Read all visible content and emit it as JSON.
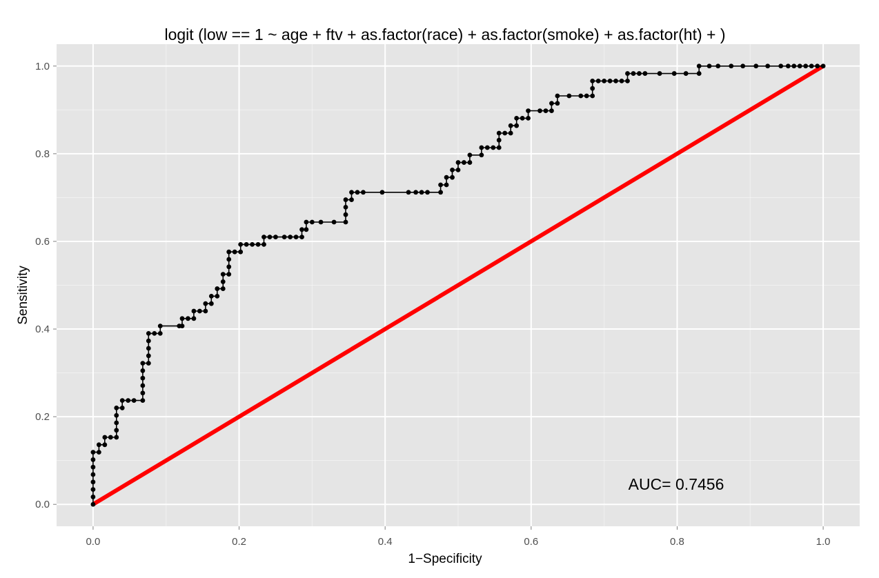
{
  "chart_data": {
    "type": "line",
    "title": "logit (low == 1 ~ age + ftv + as.factor(race) + as.factor(smoke) + as.factor(ht) + )",
    "xlabel": "1−Specificity",
    "ylabel": "Sensitivity",
    "xlim": [
      -0.05,
      1.05
    ],
    "ylim": [
      -0.05,
      1.05
    ],
    "x_ticks": [
      0.0,
      0.2,
      0.4,
      0.6,
      0.8,
      1.0
    ],
    "y_ticks": [
      0.0,
      0.2,
      0.4,
      0.6,
      0.8,
      1.0
    ],
    "x_tick_labels": [
      "0.0",
      "0.2",
      "0.4",
      "0.6",
      "0.8",
      "1.0"
    ],
    "y_tick_labels": [
      "0.0",
      "0.2",
      "0.4",
      "0.6",
      "0.8",
      "1.0"
    ],
    "grid": true,
    "annotation": "AUC= 0.7456",
    "colors": {
      "panel": "#e5e5e5",
      "grid": "#ffffff",
      "roc": "#000000",
      "reference": "#ff0000"
    },
    "series": [
      {
        "style": "step line with points",
        "color": "#000000",
        "points": [
          [
            0.0,
            0.0
          ],
          [
            0.0,
            0.017
          ],
          [
            0.0,
            0.034
          ],
          [
            0.0,
            0.051
          ],
          [
            0.0,
            0.068
          ],
          [
            0.0,
            0.085
          ],
          [
            0.0,
            0.102
          ],
          [
            0.0,
            0.119
          ],
          [
            0.008,
            0.119
          ],
          [
            0.008,
            0.136
          ],
          [
            0.016,
            0.136
          ],
          [
            0.016,
            0.153
          ],
          [
            0.024,
            0.153
          ],
          [
            0.032,
            0.153
          ],
          [
            0.032,
            0.169
          ],
          [
            0.032,
            0.186
          ],
          [
            0.032,
            0.203
          ],
          [
            0.032,
            0.22
          ],
          [
            0.04,
            0.22
          ],
          [
            0.04,
            0.237
          ],
          [
            0.048,
            0.237
          ],
          [
            0.056,
            0.237
          ],
          [
            0.068,
            0.237
          ],
          [
            0.068,
            0.254
          ],
          [
            0.068,
            0.271
          ],
          [
            0.068,
            0.288
          ],
          [
            0.068,
            0.305
          ],
          [
            0.068,
            0.322
          ],
          [
            0.076,
            0.322
          ],
          [
            0.076,
            0.339
          ],
          [
            0.076,
            0.356
          ],
          [
            0.076,
            0.373
          ],
          [
            0.076,
            0.39
          ],
          [
            0.084,
            0.39
          ],
          [
            0.092,
            0.39
          ],
          [
            0.092,
            0.407
          ],
          [
            0.118,
            0.407
          ],
          [
            0.122,
            0.407
          ],
          [
            0.122,
            0.424
          ],
          [
            0.13,
            0.424
          ],
          [
            0.138,
            0.424
          ],
          [
            0.138,
            0.441
          ],
          [
            0.146,
            0.441
          ],
          [
            0.154,
            0.441
          ],
          [
            0.154,
            0.458
          ],
          [
            0.162,
            0.458
          ],
          [
            0.162,
            0.475
          ],
          [
            0.17,
            0.475
          ],
          [
            0.17,
            0.492
          ],
          [
            0.178,
            0.492
          ],
          [
            0.178,
            0.508
          ],
          [
            0.178,
            0.525
          ],
          [
            0.186,
            0.525
          ],
          [
            0.186,
            0.542
          ],
          [
            0.186,
            0.559
          ],
          [
            0.186,
            0.576
          ],
          [
            0.194,
            0.576
          ],
          [
            0.202,
            0.576
          ],
          [
            0.202,
            0.593
          ],
          [
            0.21,
            0.593
          ],
          [
            0.218,
            0.593
          ],
          [
            0.226,
            0.593
          ],
          [
            0.234,
            0.593
          ],
          [
            0.234,
            0.61
          ],
          [
            0.242,
            0.61
          ],
          [
            0.25,
            0.61
          ],
          [
            0.262,
            0.61
          ],
          [
            0.27,
            0.61
          ],
          [
            0.278,
            0.61
          ],
          [
            0.286,
            0.61
          ],
          [
            0.286,
            0.627
          ],
          [
            0.292,
            0.627
          ],
          [
            0.292,
            0.644
          ],
          [
            0.3,
            0.644
          ],
          [
            0.312,
            0.644
          ],
          [
            0.33,
            0.644
          ],
          [
            0.346,
            0.644
          ],
          [
            0.346,
            0.661
          ],
          [
            0.346,
            0.678
          ],
          [
            0.346,
            0.695
          ],
          [
            0.354,
            0.695
          ],
          [
            0.354,
            0.712
          ],
          [
            0.362,
            0.712
          ],
          [
            0.37,
            0.712
          ],
          [
            0.396,
            0.712
          ],
          [
            0.432,
            0.712
          ],
          [
            0.442,
            0.712
          ],
          [
            0.45,
            0.712
          ],
          [
            0.458,
            0.712
          ],
          [
            0.476,
            0.712
          ],
          [
            0.476,
            0.729
          ],
          [
            0.484,
            0.729
          ],
          [
            0.484,
            0.746
          ],
          [
            0.492,
            0.746
          ],
          [
            0.492,
            0.763
          ],
          [
            0.5,
            0.763
          ],
          [
            0.5,
            0.78
          ],
          [
            0.508,
            0.78
          ],
          [
            0.516,
            0.78
          ],
          [
            0.516,
            0.797
          ],
          [
            0.532,
            0.797
          ],
          [
            0.532,
            0.814
          ],
          [
            0.54,
            0.814
          ],
          [
            0.548,
            0.814
          ],
          [
            0.556,
            0.814
          ],
          [
            0.556,
            0.831
          ],
          [
            0.556,
            0.847
          ],
          [
            0.564,
            0.847
          ],
          [
            0.572,
            0.847
          ],
          [
            0.572,
            0.864
          ],
          [
            0.58,
            0.864
          ],
          [
            0.58,
            0.881
          ],
          [
            0.588,
            0.881
          ],
          [
            0.596,
            0.881
          ],
          [
            0.596,
            0.898
          ],
          [
            0.612,
            0.898
          ],
          [
            0.62,
            0.898
          ],
          [
            0.628,
            0.898
          ],
          [
            0.628,
            0.915
          ],
          [
            0.636,
            0.915
          ],
          [
            0.636,
            0.932
          ],
          [
            0.652,
            0.932
          ],
          [
            0.668,
            0.932
          ],
          [
            0.676,
            0.932
          ],
          [
            0.684,
            0.932
          ],
          [
            0.684,
            0.949
          ],
          [
            0.684,
            0.966
          ],
          [
            0.692,
            0.966
          ],
          [
            0.7,
            0.966
          ],
          [
            0.708,
            0.966
          ],
          [
            0.716,
            0.966
          ],
          [
            0.724,
            0.966
          ],
          [
            0.732,
            0.966
          ],
          [
            0.732,
            0.983
          ],
          [
            0.74,
            0.983
          ],
          [
            0.748,
            0.983
          ],
          [
            0.756,
            0.983
          ],
          [
            0.776,
            0.983
          ],
          [
            0.796,
            0.983
          ],
          [
            0.812,
            0.983
          ],
          [
            0.83,
            0.983
          ],
          [
            0.83,
            1.0
          ],
          [
            0.844,
            1.0
          ],
          [
            0.856,
            1.0
          ],
          [
            0.874,
            1.0
          ],
          [
            0.89,
            1.0
          ],
          [
            0.908,
            1.0
          ],
          [
            0.924,
            1.0
          ],
          [
            0.942,
            1.0
          ],
          [
            0.952,
            1.0
          ],
          [
            0.96,
            1.0
          ],
          [
            0.968,
            1.0
          ],
          [
            0.976,
            1.0
          ],
          [
            0.984,
            1.0
          ],
          [
            0.992,
            1.0
          ],
          [
            1.0,
            1.0
          ]
        ]
      },
      {
        "style": "thick reference line",
        "color": "#ff0000",
        "points": [
          [
            0.0,
            0.0
          ],
          [
            1.0,
            1.0
          ]
        ]
      }
    ]
  }
}
